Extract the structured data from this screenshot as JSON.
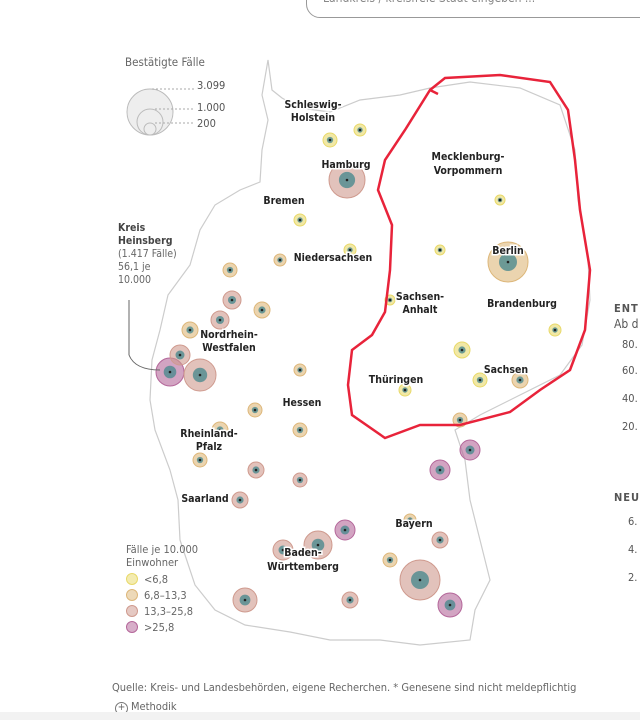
{
  "search": {
    "placeholder": "Landkreis / kreisfreie Stadt eingeben ..."
  },
  "size_legend": {
    "title": "Bestätigte Fälle",
    "values": [
      "3.099",
      "1.000",
      "200"
    ]
  },
  "states": [
    "Schleswig-",
    "Holstein",
    "Hamburg",
    "Mecklenburg-",
    "Vorpommern",
    "Bremen",
    "Berlin",
    "Niedersachsen",
    "Brandenburg",
    "Sachsen-",
    "Anhalt",
    "Nordrhein-",
    "Westfalen",
    "Sachsen",
    "Thüringen",
    "Hessen",
    "Rheinland-",
    "Pfalz",
    "Saarland",
    "Bayern",
    "Baden-",
    "Württemberg"
  ],
  "annotation": {
    "name_line1": "Kreis",
    "name_line2": "Heinsberg",
    "cases": "(1.417 Fälle)",
    "rate": "56,1 je",
    "per": "10.000"
  },
  "rate_legend": {
    "title1": "Fälle je 10.000",
    "title2": "Einwohner",
    "items": [
      {
        "label": "<6,8",
        "color": "#e8d96a"
      },
      {
        "label": "6,8–13,3",
        "color": "#ddb77a"
      },
      {
        "label": "13,3–25,8",
        "color": "#cf9a8e"
      },
      {
        "label": ">25,8",
        "color": "#b4679a"
      }
    ]
  },
  "right_cut": {
    "h1": "ENT",
    "sub": "Ab d",
    "ticks1": [
      "80.",
      "60.",
      "40.",
      "20."
    ],
    "h2": "NEU",
    "ticks2": [
      "6.",
      "4.",
      "2."
    ]
  },
  "footer": {
    "source": "Quelle: Kreis- und Landesbehörden, eigene Recherchen. * Genesene sind nicht meldepflichtig",
    "method": "Methodik"
  }
}
